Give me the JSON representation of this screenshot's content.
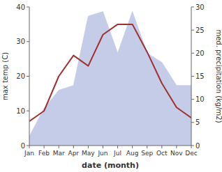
{
  "chart_data": {
    "type": "line",
    "categories": [
      "Jan",
      "Feb",
      "Mar",
      "Apr",
      "May",
      "Jun",
      "Jul",
      "Aug",
      "Sep",
      "Oct",
      "Nov",
      "Dec"
    ],
    "series": [
      {
        "type": "line",
        "color": "#a03030",
        "values": [
          7,
          10,
          20,
          26,
          23,
          32,
          35,
          35,
          27,
          18,
          11,
          8
        ]
      },
      {
        "type": "area",
        "color": "#c5cce8",
        "axis": "y2",
        "values": [
          2,
          8,
          12,
          13,
          28,
          29,
          20,
          29,
          20,
          18,
          13,
          13
        ]
      }
    ],
    "xlabel": "date (month)",
    "ylabel": "max temp (C)",
    "y2label": "med. precipitation (kg/m2)",
    "ylim": [
      0,
      40
    ],
    "yticks": [
      0,
      10,
      20,
      30,
      40
    ],
    "y2lim": [
      0,
      30
    ],
    "y2ticks": [
      0,
      5,
      10,
      15,
      20,
      25,
      30
    ],
    "grid": false
  }
}
